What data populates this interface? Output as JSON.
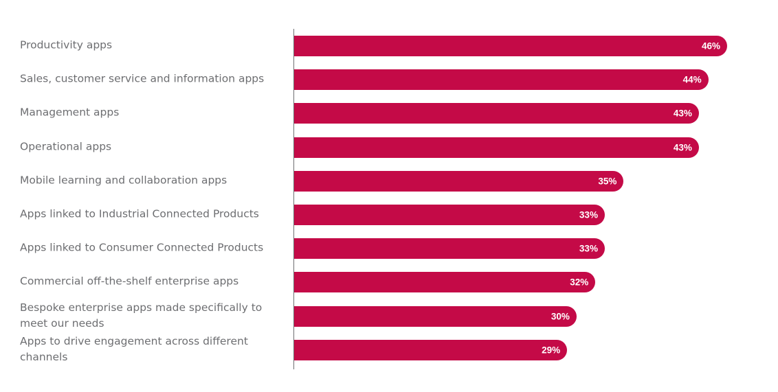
{
  "chart_data": {
    "type": "bar",
    "orientation": "horizontal",
    "title": "",
    "xlabel": "",
    "ylabel": "",
    "categories": [
      "Productivity apps",
      "Sales, customer service and information apps",
      "Management apps",
      "Operational apps",
      "Mobile learning and collaboration apps",
      "Apps linked to Industrial Connected Products",
      "Apps linked to Consumer Connected Products",
      "Commercial off-the-shelf enterprise apps",
      "Bespoke enterprise apps made specifically to meet our needs",
      "Apps to drive engagement across different channels"
    ],
    "values": [
      46,
      44,
      43,
      43,
      35,
      33,
      33,
      32,
      30,
      29
    ],
    "value_labels": [
      "46%",
      "44%",
      "43%",
      "43%",
      "35%",
      "33%",
      "33%",
      "32%",
      "30%",
      "29%"
    ],
    "unit": "%",
    "xlim": [
      0,
      46
    ],
    "grid": false,
    "bar_color": "#c40a47",
    "text_color": "#6d6e71"
  }
}
